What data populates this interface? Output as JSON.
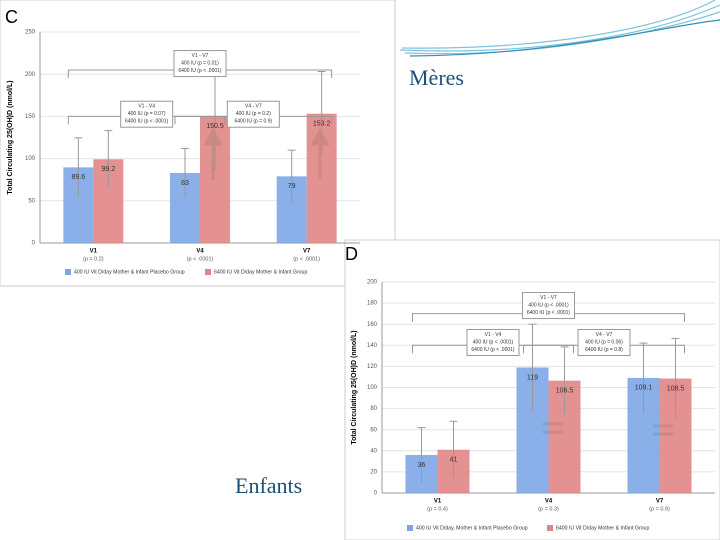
{
  "chart_data": [
    {
      "type": "bar",
      "panel": "C",
      "y_label": "Total Circulating 25(OH)D (nmol/L)",
      "categories": [
        "V1",
        "V4",
        "V7"
      ],
      "category_notes": [
        "(p = 0.2)",
        "(p < .0001)",
        "(p < .0001)"
      ],
      "ylim": [
        0,
        250
      ],
      "yticks": [
        0,
        50,
        100,
        150,
        200,
        250
      ],
      "series": [
        {
          "name": "400 IU Vit D/day Mother & Infant Placebo Group",
          "color": "#7ea6e6",
          "values": [
            89.6,
            83,
            79
          ],
          "errors": [
            35,
            29,
            31
          ]
        },
        {
          "name": "6400 IU Vit D/day Mother & Infant Group",
          "color": "#e08585",
          "values": [
            99.2,
            150.5,
            153.2
          ],
          "errors": [
            34,
            64,
            50
          ]
        }
      ],
      "annotations": [
        [
          "V1 - V7",
          "400 IU (p = 0.01)",
          "6400 IU (p < .0001)"
        ],
        [
          "V1 - V4",
          "400 IU (p = 0.07)",
          "6400 IU (p < .0001)"
        ],
        [
          "V4 - V7",
          "400 IU (p = 0.2)",
          "6400 IU (p = 0.9)"
        ]
      ]
    },
    {
      "type": "bar",
      "panel": "D",
      "y_label": "Total Circulating 25(OH)D (nmol/L)",
      "categories": [
        "V1",
        "V4",
        "V7"
      ],
      "category_notes": [
        "(p = 0.4)",
        "(p = 0.3)",
        "(p = 0.9)"
      ],
      "ylim": [
        0,
        200
      ],
      "yticks": [
        0,
        20,
        40,
        60,
        80,
        100,
        120,
        140,
        160,
        180,
        200
      ],
      "series": [
        {
          "name": "400 IU Vit D/day, Mother & Infant Placebo Group",
          "color": "#7ea6e6",
          "values": [
            36,
            119,
            109.1
          ],
          "errors": [
            26,
            41,
            33
          ]
        },
        {
          "name": "6400 IU Vit D/day Mother & Infant Group",
          "color": "#e08585",
          "values": [
            41,
            106.5,
            108.5
          ],
          "errors": [
            27,
            32,
            38
          ]
        }
      ],
      "annotations": [
        [
          "V1 - V7",
          "400 IU (p < .0001)",
          "6400 IU (p < .0001)"
        ],
        [
          "V1 - V4",
          "400 IU (p < .0001)",
          "6400 IU (p < .0001)"
        ],
        [
          "V4 - V7",
          "400 IU (p = 0.06)",
          "6400 IU (p = 0.8)"
        ]
      ]
    }
  ],
  "slide": {
    "labels": [
      "Mères",
      "Enfants"
    ]
  }
}
